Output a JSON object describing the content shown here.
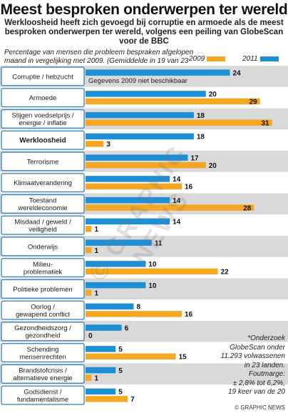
{
  "header": {
    "title": "Meest besproken onderwerpen ter wereld",
    "subtitle": "Werkloosheid heeft zich gevoegd bij  corruptie en armoede als de meest besproken onderwerpen ter wereld, volgens een peiling van GlobeScan voor de BBC",
    "description": "Percentage van mensen die probleem bespraken afgelopen maand in vergelijking met 2009. (Gemiddelde in 19 van 23 landen*)"
  },
  "legend": {
    "y2009": "2009",
    "y2011": "2011"
  },
  "colors": {
    "y2009": "#f5a623",
    "y2011": "#1e8fd4",
    "label_box": "#2e7cbf",
    "label_text": "#1a1a1a",
    "band_light": "#ffffff",
    "band_dark": "#d9d9d9"
  },
  "chart_data": {
    "type": "bar",
    "orientation": "horizontal",
    "categories": [
      "Corruptie / hebzucht",
      "Armoede",
      "Stijgen voedselprijs / energie / inflatie",
      "Werkloosheid",
      "Terrorisme",
      "Klimaatverandering",
      "Toestand wereldeconomie",
      "Misdaad / geweld / veiligheid",
      "Onderwijs",
      "Milieu-problematiek",
      "Politieke problemen",
      "Oorlog / gewapend conflict",
      "Gezondheidszorg / gezondheid",
      "Schending mensenrechten",
      "Brandstofcrisis / alternatieve energie",
      "Godsdienst / fundamentalisme"
    ],
    "category_lines": [
      [
        "Corruptie / hebzucht"
      ],
      [
        "Armoede"
      ],
      [
        "Stijgen voedselprijs /",
        "energie / inflatie"
      ],
      [
        "Werkloosheid"
      ],
      [
        "Terrorisme"
      ],
      [
        "Klimaatverandering"
      ],
      [
        "Toestand",
        "wereldeconomie"
      ],
      [
        "Misdaad / geweld /",
        "veiligheid"
      ],
      [
        "Onderwijs"
      ],
      [
        "Milieu-",
        "problematiek"
      ],
      [
        "Politieke problemen"
      ],
      [
        "Oorlog /",
        "gewapend conflict"
      ],
      [
        "Gezondheidszorg /",
        "gezondheid"
      ],
      [
        "Schending",
        "mensenrechten"
      ],
      [
        "Brandstofcrisis /",
        "alternatieve energie"
      ],
      [
        "Godsdienst /",
        "fundamentalisme"
      ]
    ],
    "highlighted_category": "Werkloosheid",
    "series": [
      {
        "name": "2011",
        "values": [
          24,
          20,
          18,
          18,
          17,
          14,
          14,
          14,
          11,
          10,
          10,
          8,
          6,
          5,
          5,
          5
        ]
      },
      {
        "name": "2009",
        "values": [
          null,
          29,
          31,
          3,
          20,
          16,
          28,
          1,
          1,
          22,
          1,
          16,
          0,
          15,
          1,
          7
        ]
      }
    ],
    "missing_note": "Gegevens 2009 niet beschikbaar",
    "xlim": [
      0,
      32
    ]
  },
  "footnote": {
    "lines": [
      "*Onderzoek",
      "GlobeScan onder",
      "11.293 volwassenen",
      "in 23 landen.",
      "Foutmarge:",
      "± 2,8% tot 6,2%,",
      "19 keer van de 20"
    ]
  },
  "credit": "© GRAPHIC NEWS",
  "watermark": "© GRAPHIC NEWS"
}
